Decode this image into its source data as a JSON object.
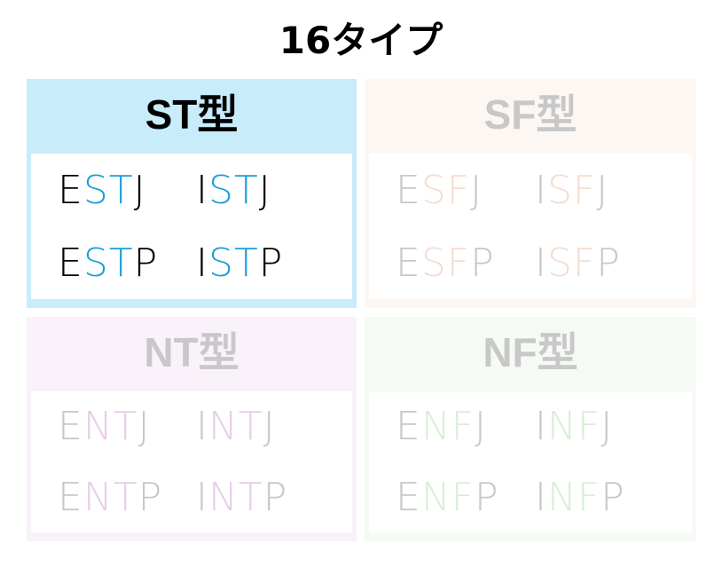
{
  "title": "16タイプ",
  "groups": [
    {
      "label": "ST型",
      "key": "ST",
      "header_color": "#c8ecfa",
      "accent": "#1a9fd6",
      "text_color": "#000000",
      "types": [
        [
          "E",
          "ST",
          "J"
        ],
        [
          "I",
          "ST",
          "J"
        ],
        [
          "E",
          "ST",
          "P"
        ],
        [
          "I",
          "ST",
          "P"
        ]
      ]
    },
    {
      "label": "SF型",
      "key": "SF",
      "header_color": "#fdf7f4",
      "accent": "#f6dccf",
      "text_color": "#c8c8c8",
      "types": [
        [
          "E",
          "SF",
          "J"
        ],
        [
          "I",
          "SF",
          "J"
        ],
        [
          "E",
          "SF",
          "P"
        ],
        [
          "I",
          "SF",
          "P"
        ]
      ]
    },
    {
      "label": "NT型",
      "key": "NT",
      "header_color": "#f9f2fa",
      "accent": "#e8cde8",
      "text_color": "#c8c8c8",
      "types": [
        [
          "E",
          "NT",
          "J"
        ],
        [
          "I",
          "NT",
          "J"
        ],
        [
          "E",
          "NT",
          "P"
        ],
        [
          "I",
          "NT",
          "P"
        ]
      ]
    },
    {
      "label": "NF型",
      "key": "NF",
      "header_color": "#f5faf4",
      "accent": "#d9efd6",
      "text_color": "#c8c8c8",
      "types": [
        [
          "E",
          "NF",
          "J"
        ],
        [
          "I",
          "NF",
          "J"
        ],
        [
          "E",
          "NF",
          "P"
        ],
        [
          "I",
          "NF",
          "P"
        ]
      ]
    }
  ]
}
